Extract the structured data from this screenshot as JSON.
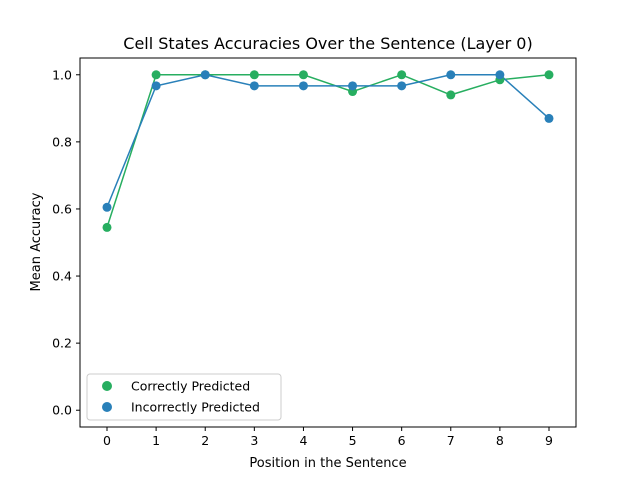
{
  "chart_data": {
    "type": "line",
    "title": "Cell States Accuracies Over the Sentence (Layer  0)",
    "xlabel": "Position in the Sentence",
    "ylabel": "Mean Accuracy",
    "x": [
      0,
      1,
      2,
      3,
      4,
      5,
      6,
      7,
      8,
      9
    ],
    "xlim": [
      -0.55,
      9.55
    ],
    "ylim": [
      -0.05,
      1.05
    ],
    "xticks": [
      "0",
      "1",
      "2",
      "3",
      "4",
      "5",
      "6",
      "7",
      "8",
      "9"
    ],
    "yticks": [
      "0.0",
      "0.2",
      "0.4",
      "0.6",
      "0.8",
      "1.0"
    ],
    "grid": false,
    "legend_position": "lower-left",
    "series": [
      {
        "name": "Correctly Predicted",
        "color": "#27ae60",
        "values": [
          0.545,
          1.0,
          1.0,
          1.0,
          1.0,
          0.95,
          1.0,
          0.94,
          0.985,
          1.0
        ]
      },
      {
        "name": "Incorrectly Predicted",
        "color": "#2980b9",
        "values": [
          0.605,
          0.967,
          1.0,
          0.967,
          0.967,
          0.967,
          0.967,
          1.0,
          1.0,
          0.87
        ]
      }
    ]
  }
}
